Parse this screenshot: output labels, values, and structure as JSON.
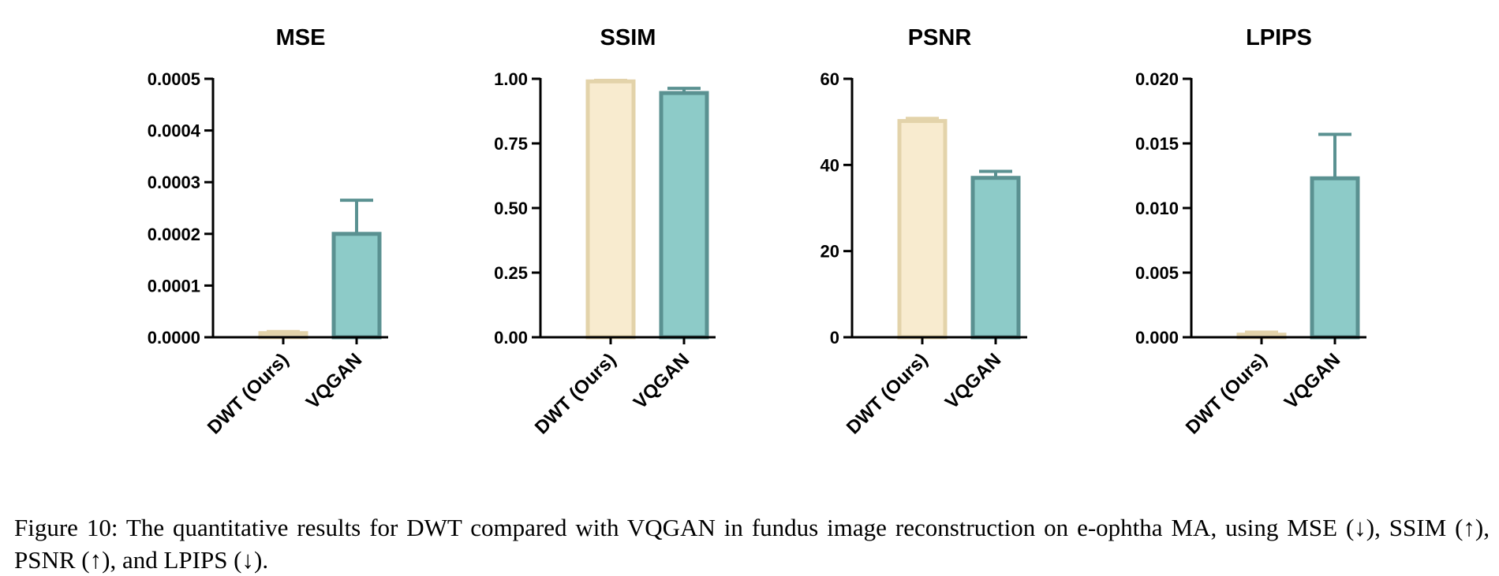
{
  "chart_data": [
    {
      "type": "bar",
      "title": "MSE",
      "categories": [
        "DWT (Ours)",
        "VQGAN"
      ],
      "values": [
        8e-06,
        0.0002
      ],
      "errors": [
        3e-06,
        6.5e-05
      ],
      "ylim": [
        0,
        0.0005
      ],
      "yticks": [
        "0.0000",
        "0.0001",
        "0.0002",
        "0.0003",
        "0.0004",
        "0.0005"
      ],
      "grid": false
    },
    {
      "type": "bar",
      "title": "SSIM",
      "categories": [
        "DWT (Ours)",
        "VQGAN"
      ],
      "values": [
        0.99,
        0.945
      ],
      "errors": [
        0.004,
        0.018
      ],
      "ylim": [
        0,
        1.0
      ],
      "yticks": [
        "0.00",
        "0.25",
        "0.50",
        "0.75",
        "1.00"
      ],
      "grid": false
    },
    {
      "type": "bar",
      "title": "PSNR",
      "categories": [
        "DWT (Ours)",
        "VQGAN"
      ],
      "values": [
        50.2,
        37.0
      ],
      "errors": [
        0.6,
        1.5
      ],
      "ylim": [
        0,
        60
      ],
      "yticks": [
        "0",
        "20",
        "40",
        "60"
      ],
      "grid": false
    },
    {
      "type": "bar",
      "title": "LPIPS",
      "categories": [
        "DWT (Ours)",
        "VQGAN"
      ],
      "values": [
        0.0002,
        0.0123
      ],
      "errors": [
        0.0002,
        0.0034
      ],
      "ylim": [
        0,
        0.02
      ],
      "yticks": [
        "0.000",
        "0.005",
        "0.010",
        "0.015",
        "0.020"
      ],
      "grid": false
    }
  ],
  "colors": {
    "dwt_fill": "#f8ebcf",
    "dwt_stroke": "#e3d3aa",
    "vqgan_fill": "#8dcbc8",
    "vqgan_stroke": "#5a9191"
  },
  "caption": "Figure 10: The quantitative results for DWT compared with VQGAN in fundus image reconstruction on e-ophtha MA, using MSE (↓), SSIM (↑), PSNR (↑), and LPIPS (↓)."
}
